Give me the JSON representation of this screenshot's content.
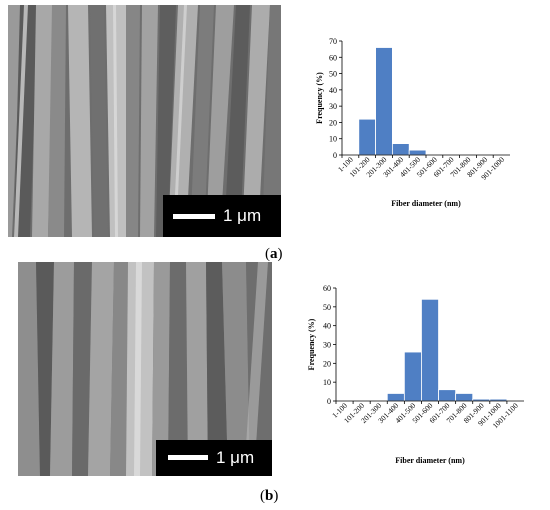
{
  "panel_a": {
    "label_open": "(",
    "label_letter": "a",
    "label_close": ")",
    "scale_text": "1 μm"
  },
  "panel_b": {
    "label_open": "(",
    "label_letter": "b",
    "label_close": ")",
    "scale_text": "1 μm"
  },
  "chart_data": [
    {
      "type": "bar",
      "categories": [
        "1-100",
        "101-200",
        "201-300",
        "301-400",
        "401-500",
        "501-600",
        "601-700",
        "701-800",
        "801-900",
        "901-1000"
      ],
      "values": [
        0,
        22,
        66,
        7,
        3,
        0,
        0,
        0,
        0,
        0
      ],
      "title": "",
      "xlabel": "Fiber diameter (nm)",
      "ylabel": "Frequency (%)",
      "ylim": [
        0,
        70
      ],
      "yticks": [
        0,
        10,
        20,
        30,
        40,
        50,
        60,
        70
      ],
      "grid": false,
      "bar_color": "#4f7fc4"
    },
    {
      "type": "bar",
      "categories": [
        "1-100",
        "101-200",
        "201-300",
        "301-400",
        "401-500",
        "501-600",
        "601-700",
        "701-800",
        "801-900",
        "901-1000",
        "1001-1100"
      ],
      "values": [
        0,
        0,
        0,
        4,
        26,
        54,
        6,
        4,
        1,
        1,
        0
      ],
      "title": "",
      "xlabel": "Fiber diameter (nm)",
      "ylabel": "Frequency (%)",
      "ylim": [
        0,
        60
      ],
      "yticks": [
        0,
        10,
        20,
        30,
        40,
        50,
        60
      ],
      "grid": false,
      "bar_color": "#4f7fc4"
    }
  ]
}
